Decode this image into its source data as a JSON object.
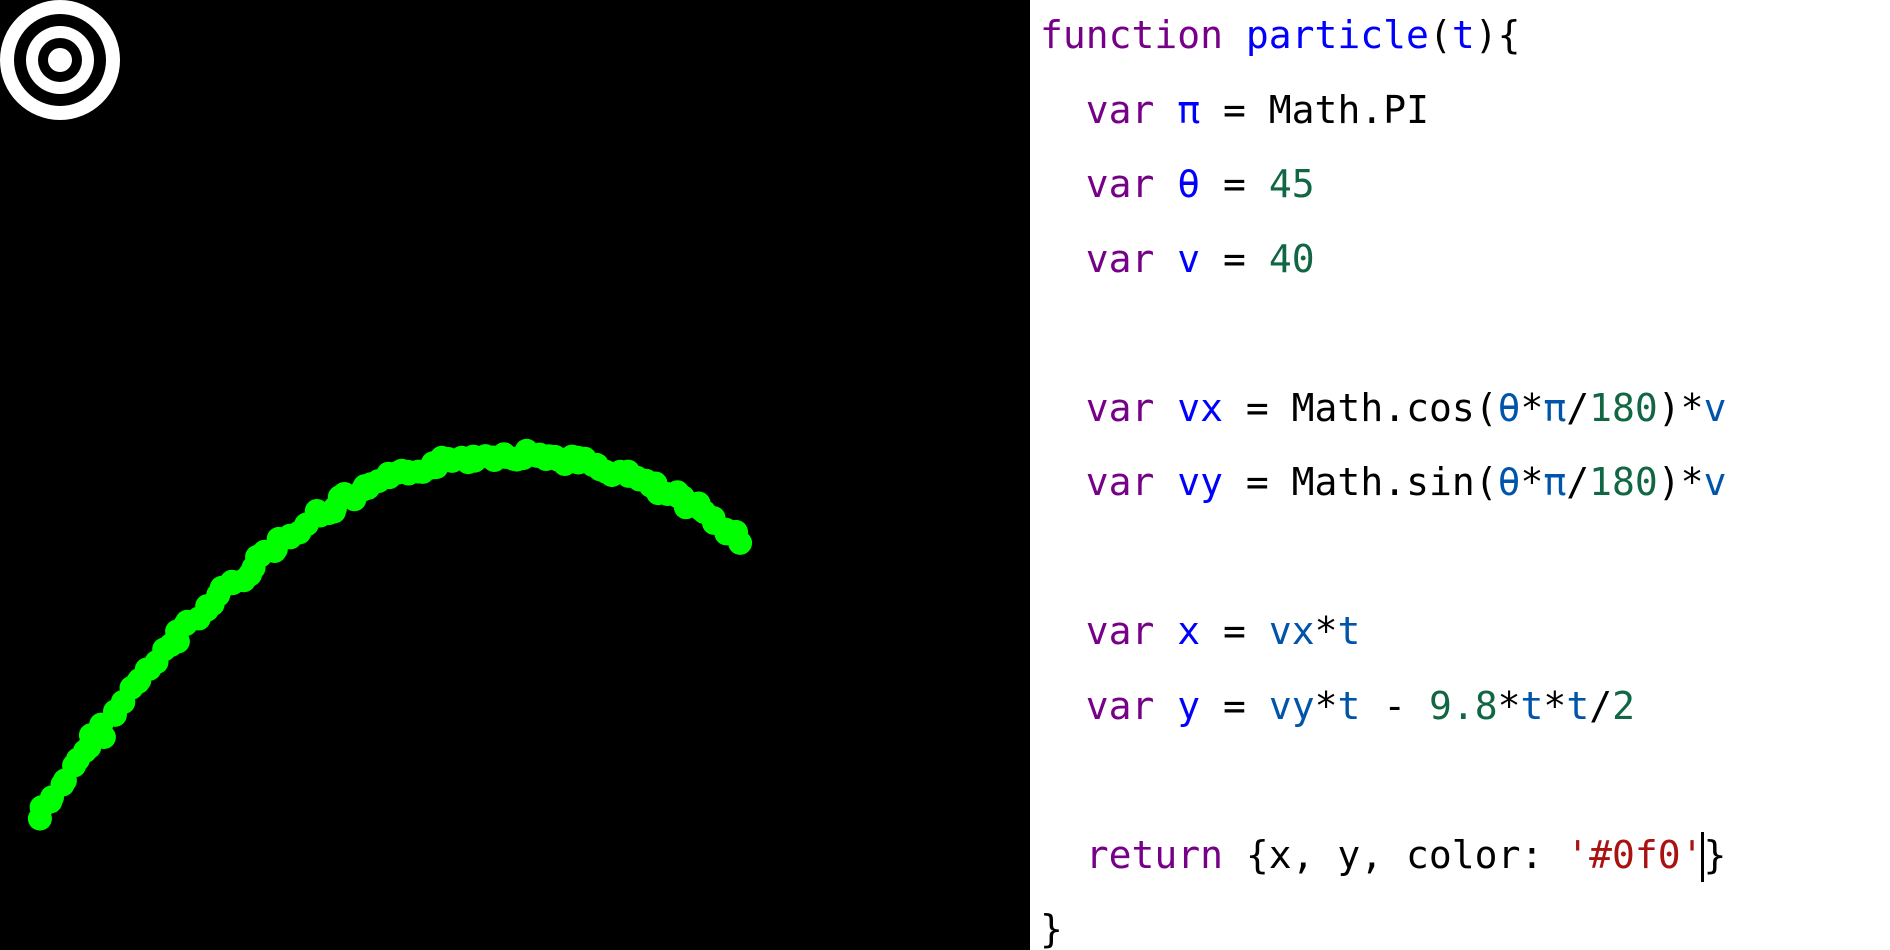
{
  "canvas": {
    "background": "#000000",
    "target_icon": "bullseye-target-icon",
    "particle_color": "#00ff00",
    "particle": {
      "angle_deg": 45,
      "speed": 40,
      "gravity": 9.8
    }
  },
  "editor": {
    "lines": [
      [
        {
          "t": "function ",
          "c": "kw"
        },
        {
          "t": "particle",
          "c": "fn"
        },
        {
          "t": "(",
          "c": "op"
        },
        {
          "t": "t",
          "c": "def"
        },
        {
          "t": "){",
          "c": "op"
        }
      ],
      [
        {
          "t": "  var ",
          "c": "kw"
        },
        {
          "t": "π",
          "c": "def"
        },
        {
          "t": " = Math.PI",
          "c": "op"
        }
      ],
      [
        {
          "t": "  var ",
          "c": "kw"
        },
        {
          "t": "θ",
          "c": "def"
        },
        {
          "t": " = ",
          "c": "op"
        },
        {
          "t": "45",
          "c": "num"
        }
      ],
      [
        {
          "t": "  var ",
          "c": "kw"
        },
        {
          "t": "v",
          "c": "def"
        },
        {
          "t": " = ",
          "c": "op"
        },
        {
          "t": "40",
          "c": "num"
        }
      ],
      [],
      [
        {
          "t": "  var ",
          "c": "kw"
        },
        {
          "t": "vx",
          "c": "def"
        },
        {
          "t": " = Math.cos(",
          "c": "op"
        },
        {
          "t": "θ",
          "c": "vr"
        },
        {
          "t": "*",
          "c": "op"
        },
        {
          "t": "π",
          "c": "vr"
        },
        {
          "t": "/",
          "c": "op"
        },
        {
          "t": "180",
          "c": "num"
        },
        {
          "t": ")*",
          "c": "op"
        },
        {
          "t": "v",
          "c": "vr"
        }
      ],
      [
        {
          "t": "  var ",
          "c": "kw"
        },
        {
          "t": "vy",
          "c": "def"
        },
        {
          "t": " = Math.sin(",
          "c": "op"
        },
        {
          "t": "θ",
          "c": "vr"
        },
        {
          "t": "*",
          "c": "op"
        },
        {
          "t": "π",
          "c": "vr"
        },
        {
          "t": "/",
          "c": "op"
        },
        {
          "t": "180",
          "c": "num"
        },
        {
          "t": ")*",
          "c": "op"
        },
        {
          "t": "v",
          "c": "vr"
        }
      ],
      [],
      [
        {
          "t": "  var ",
          "c": "kw"
        },
        {
          "t": "x",
          "c": "def"
        },
        {
          "t": " = ",
          "c": "op"
        },
        {
          "t": "vx",
          "c": "vr"
        },
        {
          "t": "*",
          "c": "op"
        },
        {
          "t": "t",
          "c": "vr"
        }
      ],
      [
        {
          "t": "  var ",
          "c": "kw"
        },
        {
          "t": "y",
          "c": "def"
        },
        {
          "t": " = ",
          "c": "op"
        },
        {
          "t": "vy",
          "c": "vr"
        },
        {
          "t": "*",
          "c": "op"
        },
        {
          "t": "t",
          "c": "vr"
        },
        {
          "t": " - ",
          "c": "op"
        },
        {
          "t": "9.8",
          "c": "num"
        },
        {
          "t": "*",
          "c": "op"
        },
        {
          "t": "t",
          "c": "vr"
        },
        {
          "t": "*",
          "c": "op"
        },
        {
          "t": "t",
          "c": "vr"
        },
        {
          "t": "/",
          "c": "op"
        },
        {
          "t": "2",
          "c": "num"
        }
      ],
      [],
      [
        {
          "t": "  return ",
          "c": "kw"
        },
        {
          "t": "{x, y, color: ",
          "c": "op"
        },
        {
          "t": "'#0f0'",
          "c": "str"
        },
        {
          "cursor": true
        },
        {
          "t": "}",
          "c": "op"
        }
      ],
      [
        {
          "t": "}",
          "c": "op"
        }
      ]
    ]
  }
}
